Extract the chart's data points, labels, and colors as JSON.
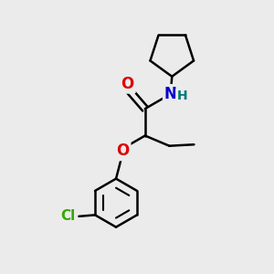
{
  "background_color": "#ebebeb",
  "atom_colors": {
    "O": "#dd0000",
    "N": "#0000cc",
    "Cl": "#33aa00",
    "H": "#007777",
    "C": "#000000"
  },
  "bond_color": "#000000",
  "bond_width": 1.8,
  "figsize": [
    3.0,
    3.0
  ],
  "dpi": 100,
  "xlim": [
    0,
    10
  ],
  "ylim": [
    0,
    10
  ]
}
